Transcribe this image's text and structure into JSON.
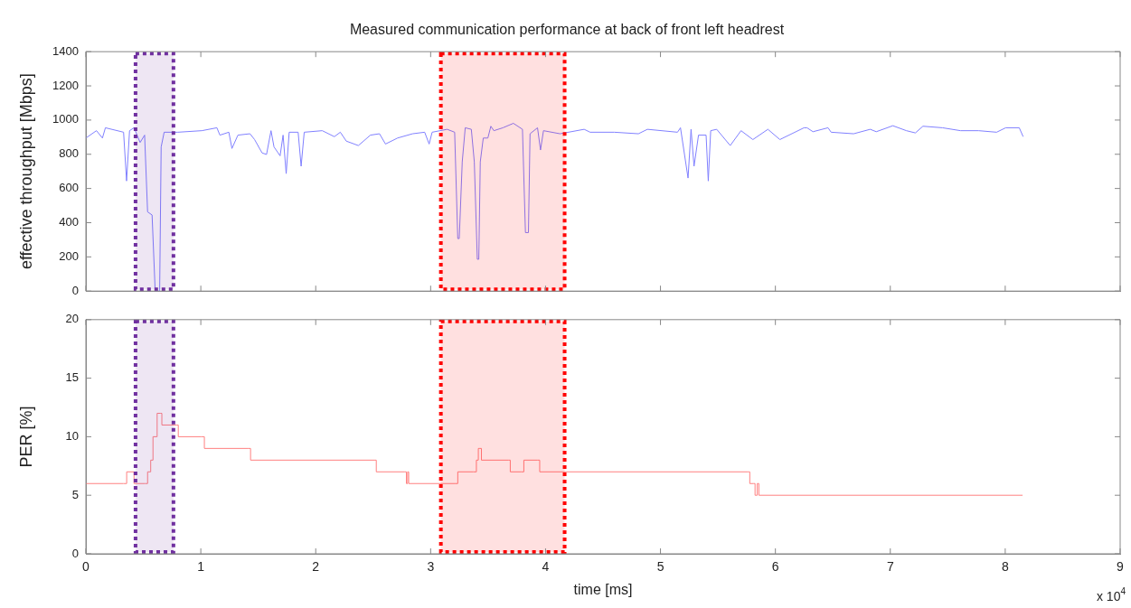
{
  "chart_data": [
    {
      "type": "line",
      "title": "Measured communication performance at back of front left headrest",
      "ylabel": "effective throughput [Mbps]",
      "color": "#8080ff",
      "x": [
        0,
        0.092,
        0.144,
        0.17,
        0.328,
        0.354,
        0.38,
        0.419,
        0.472,
        0.511,
        0.537,
        0.576,
        0.603,
        0.642,
        0.655,
        0.681,
        0.8,
        1.009,
        1.14,
        1.166,
        1.244,
        1.271,
        1.323,
        1.428,
        1.468,
        1.533,
        1.572,
        1.611,
        1.637,
        1.69,
        1.716,
        1.743,
        1.769,
        1.847,
        1.873,
        1.9,
        2.057,
        2.162,
        2.214,
        2.266,
        2.371,
        2.476,
        2.555,
        2.607,
        2.712,
        2.843,
        2.948,
        2.987,
        3.013,
        3.144,
        3.209,
        3.236,
        3.249,
        3.275,
        3.301,
        3.354,
        3.38,
        3.406,
        3.419,
        3.432,
        3.458,
        3.498,
        3.524,
        3.55,
        3.629,
        3.72,
        3.799,
        3.825,
        3.851,
        3.865,
        3.93,
        3.956,
        3.982,
        4.126,
        4.336,
        4.388,
        4.598,
        4.808,
        4.886,
        5.148,
        5.174,
        5.24,
        5.266,
        5.292,
        5.331,
        5.397,
        5.416,
        5.437,
        5.489,
        5.607,
        5.701,
        5.804,
        5.935,
        6.039,
        6.249,
        6.275,
        6.327,
        6.458,
        6.485,
        6.681,
        6.825,
        6.878,
        7.022,
        7.14,
        7.218,
        7.284,
        7.454,
        7.611,
        7.768,
        7.925,
        8.004,
        8.122,
        8.156
      ],
      "values": [
        895,
        938,
        895,
        955,
        929,
        644,
        938,
        955,
        869,
        912,
        463,
        445,
        0,
        0,
        843,
        929,
        929,
        938,
        955,
        912,
        929,
        834,
        912,
        920,
        886,
        808,
        799,
        938,
        843,
        791,
        912,
        687,
        929,
        929,
        730,
        929,
        938,
        903,
        929,
        877,
        851,
        912,
        920,
        860,
        895,
        920,
        929,
        860,
        929,
        946,
        929,
        307,
        307,
        756,
        955,
        946,
        756,
        186,
        186,
        756,
        895,
        895,
        964,
        938,
        955,
        981,
        946,
        342,
        342,
        920,
        955,
        825,
        938,
        920,
        946,
        929,
        929,
        920,
        946,
        929,
        955,
        661,
        946,
        730,
        912,
        912,
        644,
        938,
        946,
        851,
        938,
        886,
        946,
        886,
        955,
        955,
        932,
        955,
        929,
        920,
        946,
        932,
        967,
        938,
        925,
        964,
        955,
        938,
        938,
        929,
        955,
        955,
        903
      ],
      "xlim": [
        0,
        9
      ],
      "xticks": [
        0,
        1,
        2,
        3,
        4,
        5,
        6,
        7,
        8,
        9
      ],
      "ylim": [
        0,
        1400
      ],
      "yticks": [
        0,
        200,
        400,
        600,
        800,
        1000,
        1200,
        1400
      ],
      "tick_labels": "y",
      "bands": [
        {
          "axis": "x",
          "from": 0.432,
          "to": 0.762,
          "color": "#7030a0"
        },
        {
          "axis": "x",
          "from": 3.089,
          "to": 4.166,
          "color": "#ff0000"
        }
      ]
    },
    {
      "type": "step",
      "xlabel": "time [ms]",
      "ylabel": "PER [%]",
      "color": "#ff8080",
      "annotations": [
        "x 10$^{4}$"
      ],
      "x": [
        0,
        0.326,
        0.355,
        0.419,
        0.516,
        0.537,
        0.564,
        0.584,
        0.62,
        0.648,
        0.661,
        0.789,
        0.804,
        1.005,
        1.031,
        1.415,
        1.433,
        2.51,
        2.527,
        2.776,
        2.789,
        2.8,
        2.809,
        3.217,
        3.236,
        3.372,
        3.398,
        3.415,
        3.429,
        3.442,
        3.68,
        3.693,
        3.79,
        3.811,
        3.932,
        3.949,
        5.761,
        5.777,
        5.811,
        5.823,
        5.842,
        5.856,
        8.151
      ],
      "values": [
        6,
        6,
        7,
        6,
        6,
        7,
        8,
        10,
        12,
        12,
        11,
        11,
        10,
        10,
        9,
        9,
        8,
        8,
        7,
        7,
        6,
        7,
        6,
        6,
        7,
        7,
        8,
        9,
        9,
        8,
        8,
        7,
        7,
        8,
        8,
        7,
        7,
        6,
        6,
        5,
        6,
        5,
        5
      ],
      "xlim": [
        0,
        9
      ],
      "xticks": [
        0,
        1,
        2,
        3,
        4,
        5,
        6,
        7,
        8,
        9
      ],
      "ylim": [
        0,
        20
      ],
      "yticks": [
        0,
        5,
        10,
        15,
        20
      ],
      "bands": [
        {
          "axis": "x",
          "from": 0.432,
          "to": 0.762,
          "color": "#7030a0"
        },
        {
          "axis": "x",
          "from": 3.089,
          "to": 4.166,
          "color": "#ff0000"
        }
      ]
    }
  ]
}
